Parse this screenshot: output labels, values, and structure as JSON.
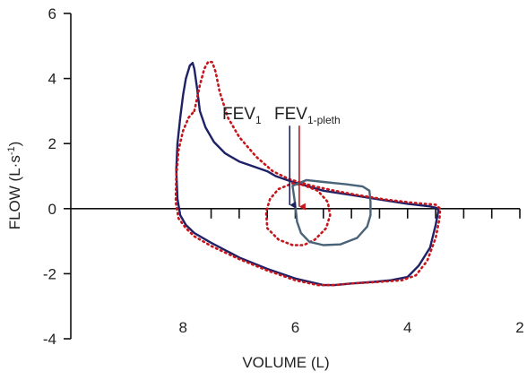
{
  "chart_data": {
    "type": "line",
    "xlabel": "VOLUME (L)",
    "xlim": [
      10,
      2
    ],
    "x_ticks": [
      8,
      6,
      4,
      2
    ],
    "x_tick_labels": [
      "8",
      "6",
      "4",
      "2"
    ],
    "x_minor_ticks": [
      7.5,
      7,
      6.5,
      6,
      5.5,
      5,
      4.5,
      4,
      3.5,
      3,
      2.5,
      2
    ],
    "ylabel": {
      "base": "FLOW (L·s",
      "sup": "-1",
      "end": ")"
    },
    "ylim": [
      -4,
      6
    ],
    "y_ticks": [
      6,
      4,
      2,
      0,
      -2,
      -4
    ],
    "y_tick_labels": [
      "6",
      "4",
      "2",
      "0",
      "-2",
      "-4"
    ],
    "colors": {
      "navy": "#1e2166",
      "dotted": "#c4161c",
      "slate": "#4a6378",
      "axis": "#111111"
    },
    "series": [
      {
        "style": "solid-navy",
        "color": "#1e2166",
        "x": [
          8.0,
          7.95,
          7.88,
          7.83,
          7.8,
          7.75,
          7.7,
          7.6,
          7.45,
          7.25,
          7.0,
          6.75,
          6.5,
          6.35,
          6.1,
          5.8,
          5.5,
          5.0,
          4.5,
          4.0,
          3.6,
          3.48,
          3.45,
          3.5,
          3.6,
          3.8,
          4.0,
          4.3,
          4.6,
          5.0,
          5.3,
          5.5,
          6.0,
          6.5,
          7.0,
          7.5,
          7.8,
          7.95,
          8.05,
          8.1,
          8.12,
          8.1,
          8.05,
          8.0
        ],
        "y": [
          3.5,
          4.0,
          4.4,
          4.48,
          4.3,
          3.7,
          3.0,
          2.5,
          2.05,
          1.7,
          1.45,
          1.3,
          1.15,
          1.0,
          0.85,
          0.7,
          0.55,
          0.42,
          0.28,
          0.15,
          0.07,
          0.02,
          -0.05,
          -0.5,
          -1.2,
          -1.75,
          -2.1,
          -2.2,
          -2.25,
          -2.3,
          -2.35,
          -2.35,
          -2.15,
          -1.85,
          -1.5,
          -1.05,
          -0.75,
          -0.5,
          -0.2,
          0.3,
          1.2,
          2.0,
          2.8,
          3.5
        ]
      },
      {
        "style": "dotted-red",
        "color": "#c4161c",
        "x": [
          7.8,
          7.7,
          7.62,
          7.55,
          7.48,
          7.42,
          7.35,
          7.2,
          7.0,
          6.7,
          6.4,
          6.1,
          5.7,
          5.3,
          4.9,
          4.4,
          3.9,
          3.5,
          3.42,
          3.43,
          3.5,
          3.65,
          3.85,
          4.1,
          4.5,
          5.0,
          5.3,
          5.6,
          6.0,
          6.5,
          7.0,
          7.5,
          7.8,
          7.95,
          8.08,
          8.13,
          8.12,
          8.08,
          8.0,
          7.9,
          7.8
        ],
        "y": [
          3.0,
          3.8,
          4.3,
          4.52,
          4.5,
          4.2,
          3.6,
          2.8,
          2.2,
          1.6,
          1.15,
          0.9,
          0.7,
          0.55,
          0.42,
          0.28,
          0.18,
          0.12,
          0.0,
          -0.3,
          -0.9,
          -1.6,
          -2.05,
          -2.2,
          -2.25,
          -2.3,
          -2.35,
          -2.35,
          -2.2,
          -1.9,
          -1.55,
          -1.15,
          -0.85,
          -0.6,
          -0.3,
          0.2,
          1.0,
          1.8,
          2.4,
          2.8,
          3.0
        ]
      },
      {
        "style": "dotted-red-small-loop",
        "color": "#c4161c",
        "x": [
          6.05,
          5.85,
          5.6,
          5.42,
          5.38,
          5.45,
          5.65,
          5.85,
          6.05,
          6.3,
          6.5,
          6.52,
          6.45,
          6.3,
          6.05
        ],
        "y": [
          0.78,
          0.72,
          0.55,
          0.2,
          -0.2,
          -0.6,
          -0.95,
          -1.12,
          -1.12,
          -0.95,
          -0.6,
          -0.1,
          0.3,
          0.6,
          0.78
        ]
      },
      {
        "style": "solid-slate-small-loop",
        "color": "#4a6378",
        "x": [
          6.05,
          5.8,
          5.5,
          5.1,
          4.8,
          4.68,
          4.66,
          4.66,
          4.72,
          4.9,
          5.2,
          5.5,
          5.75,
          5.9,
          5.97,
          6.0,
          6.05
        ],
        "y": [
          0.7,
          0.88,
          0.82,
          0.75,
          0.68,
          0.55,
          0.2,
          -0.2,
          -0.55,
          -0.9,
          -1.1,
          -1.12,
          -1.02,
          -0.75,
          -0.4,
          0.1,
          0.7
        ]
      }
    ],
    "annotations": [
      {
        "id": "fev1",
        "text": "FEV",
        "sub": "1",
        "color": "#1e2166",
        "arrow_x": 6.1,
        "arrow_y_from": 2.55,
        "arrow_y_to": 0.0
      },
      {
        "id": "fev1-pleth",
        "text": "FEV",
        "sub": "1-pleth",
        "color": "#c4161c",
        "arrow_x": 5.93,
        "arrow_y_from": 2.55,
        "arrow_y_to": -0.05
      }
    ]
  }
}
